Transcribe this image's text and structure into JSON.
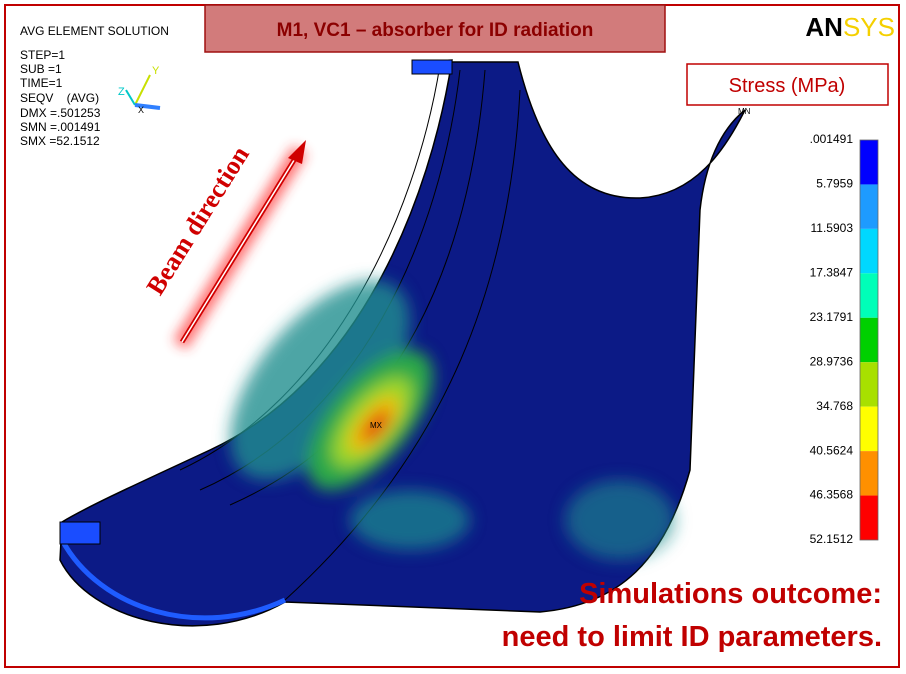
{
  "header": {
    "title": "M1, VC1 – absorber for ID radiation",
    "logo": [
      "AN",
      "SYS"
    ]
  },
  "solution_info": {
    "lines": [
      "AVG ELEMENT SOLUTION",
      "STEP=1",
      "SUB =1",
      "TIME=1",
      "SEQV    (AVG)",
      "DMX =.501253",
      "SMN =.001491",
      "SMX =52.1512"
    ]
  },
  "axis_triad": [
    "Y",
    "Z",
    "X"
  ],
  "legend": {
    "title": "Stress (MPa)",
    "labels": [
      ".001491",
      "5.7959",
      "11.5903",
      "17.3847",
      "23.1791",
      "28.9736",
      "34.768",
      "40.5624",
      "46.3568",
      "52.1512"
    ]
  },
  "annotations": {
    "beam_direction": "Beam direction",
    "min_marker": "MN",
    "max_marker": "MX",
    "conclusion": [
      "Simulations outcome:",
      "need to limit ID parameters."
    ]
  }
}
